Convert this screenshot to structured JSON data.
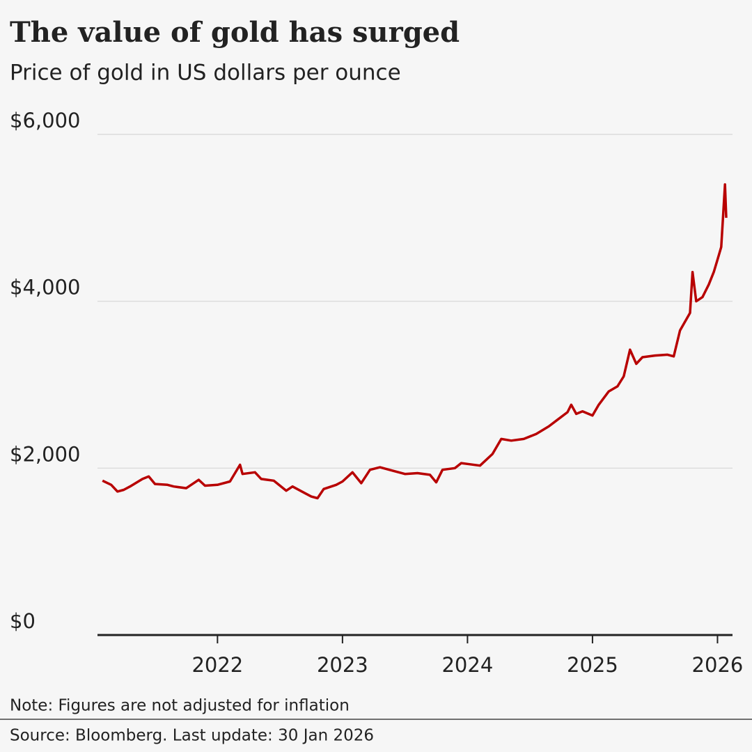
{
  "chart_data": {
    "type": "line",
    "title": "The value of gold has surged",
    "subtitle": "Price of gold in US dollars per ounce",
    "note": "Note: Figures are not adjusted for inflation",
    "source": "Source: Bloomberg. Last update: 30 Jan 2026",
    "color": "#b80000",
    "grid": true,
    "xlim": [
      2021.04,
      2026.12
    ],
    "xticks": [
      2022,
      2023,
      2024,
      2025,
      2026
    ],
    "ylim": [
      0,
      6000
    ],
    "yticks": [
      {
        "value": 0,
        "label": "$0"
      },
      {
        "value": 2000,
        "label": "$2,000"
      },
      {
        "value": 4000,
        "label": "$4,000"
      },
      {
        "value": 6000,
        "label": "$6,000"
      }
    ],
    "x": [
      2021.08,
      2021.15,
      2021.2,
      2021.25,
      2021.3,
      2021.4,
      2021.45,
      2021.5,
      2021.6,
      2021.65,
      2021.75,
      2021.85,
      2021.9,
      2022.0,
      2022.1,
      2022.18,
      2022.2,
      2022.3,
      2022.35,
      2022.45,
      2022.55,
      2022.6,
      2022.7,
      2022.75,
      2022.8,
      2022.85,
      2022.95,
      2023.0,
      2023.08,
      2023.15,
      2023.22,
      2023.3,
      2023.4,
      2023.5,
      2023.6,
      2023.7,
      2023.75,
      2023.8,
      2023.9,
      2023.95,
      2024.0,
      2024.1,
      2024.2,
      2024.27,
      2024.35,
      2024.45,
      2024.55,
      2024.65,
      2024.72,
      2024.8,
      2024.83,
      2024.87,
      2024.92,
      2025.0,
      2025.05,
      2025.13,
      2025.2,
      2025.25,
      2025.3,
      2025.35,
      2025.4,
      2025.5,
      2025.6,
      2025.65,
      2025.7,
      2025.78,
      2025.8,
      2025.83,
      2025.88,
      2025.93,
      2025.97,
      2026.0,
      2026.03,
      2026.06,
      2026.07
    ],
    "values": [
      1850,
      1800,
      1720,
      1740,
      1780,
      1870,
      1900,
      1810,
      1800,
      1780,
      1760,
      1860,
      1790,
      1800,
      1840,
      2040,
      1930,
      1950,
      1870,
      1850,
      1730,
      1780,
      1700,
      1660,
      1640,
      1750,
      1800,
      1840,
      1950,
      1820,
      1980,
      2010,
      1970,
      1930,
      1940,
      1920,
      1830,
      1980,
      2000,
      2060,
      2050,
      2030,
      2170,
      2350,
      2330,
      2350,
      2410,
      2500,
      2580,
      2670,
      2760,
      2650,
      2680,
      2630,
      2760,
      2920,
      2980,
      3100,
      3420,
      3250,
      3330,
      3350,
      3360,
      3340,
      3650,
      3860,
      4350,
      4000,
      4050,
      4200,
      4350,
      4500,
      4650,
      5400,
      5000
    ]
  }
}
